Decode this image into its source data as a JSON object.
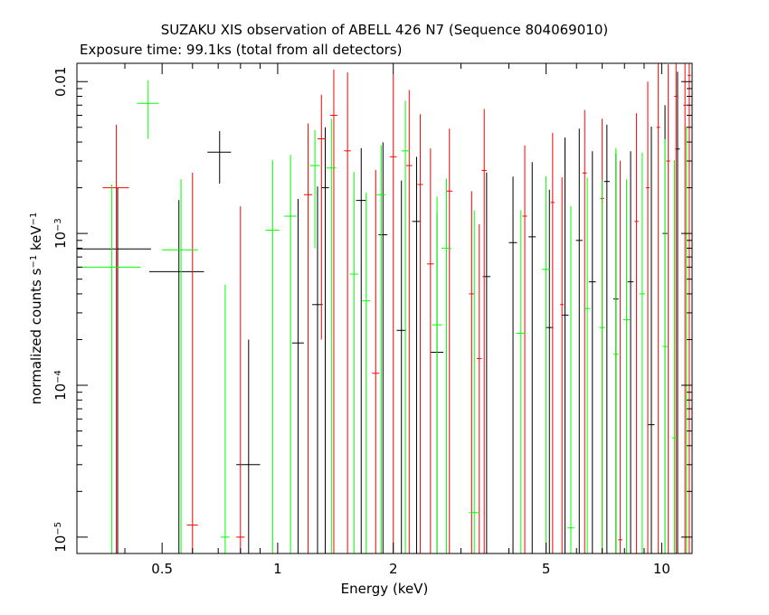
{
  "chart_data": {
    "type": "errorbar",
    "title": "SUZAKU XIS observation of ABELL 426 N7 (Sequence 804069010)",
    "subtitle": "Exposure time: 99.1ks (total from all detectors)",
    "xlabel": "Energy (keV)",
    "ylabel": [
      "normalized counts s",
      "−1",
      " keV",
      "−1"
    ],
    "xlog": true,
    "ylog": true,
    "xlim": [
      0.3,
      12
    ],
    "ylim": [
      7.8e-06,
      0.0132
    ],
    "xticks": [
      0.5,
      1,
      2,
      5,
      10
    ],
    "xminorticks": [
      0.4,
      0.6,
      0.7,
      0.8,
      0.9,
      3,
      4,
      6,
      7,
      8,
      9
    ],
    "yticks": [
      {
        "value": 1e-05,
        "label": "10",
        "exponent": "−5"
      },
      {
        "value": 0.0001,
        "label": "10",
        "exponent": "−4"
      },
      {
        "value": 0.001,
        "label": "10",
        "exponent": "−3"
      },
      0.01
    ],
    "yminorticks": [
      2e-05,
      3e-05,
      4e-05,
      5e-05,
      6e-05,
      7e-05,
      8e-05,
      9e-05,
      0.0002,
      0.0003,
      0.0004,
      0.0005,
      0.0006,
      0.0007,
      0.0008,
      0.0009,
      0.002,
      0.003,
      0.004,
      0.005,
      0.006,
      0.007,
      0.008,
      0.009
    ],
    "series": [
      {
        "color": "#000000",
        "x": [
          0.383,
          0.553,
          0.706,
          0.84,
          1.13,
          1.27,
          1.33,
          1.65,
          1.88,
          2.1,
          2.3,
          2.6,
          3.5,
          4.1,
          4.6,
          5.1,
          5.6,
          6.1,
          6.6,
          7.2,
          7.6,
          8.3,
          9.4,
          10.2,
          11
        ],
        "xerr": [
          0.085,
          0.09,
          0.05,
          0.06,
          0.04,
          0.04,
          0.03,
          0.05,
          0.05,
          0.06,
          0.06,
          0.1,
          0.08,
          0.1,
          0.1,
          0.12,
          0.12,
          0.12,
          0.14,
          0.12,
          0.12,
          0.15,
          0.18,
          0.15,
          0.15
        ],
        "values": [
          0.00079,
          0.00056,
          0.00343,
          3e-05,
          0.00019,
          0.00034,
          0.002,
          0.00165,
          0.00098,
          0.00023,
          0.0012,
          0.000165,
          0.00052,
          0.00087,
          0.00095,
          0.00024,
          0.00029,
          0.0009,
          0.00048,
          0.0022,
          0.00037,
          0.00048,
          5.5e-05,
          0.001,
          0.0036
        ],
        "yerr": [
          0.0012,
          0.0011,
          0.0013,
          0.00017,
          0.0015,
          0.0017,
          0.003,
          0.002,
          0.003,
          0.002,
          0.002,
          0.0012,
          0.002,
          0.0015,
          0.002,
          0.0017,
          0.004,
          0.004,
          0.003,
          0.003,
          0.003,
          0.003,
          0.005,
          0.006,
          0.008
        ]
      },
      {
        "color": "#ff0000",
        "x": [
          0.38,
          0.6,
          0.8,
          1.2,
          1.3,
          1.4,
          1.52,
          1.8,
          2.0,
          2.2,
          2.35,
          2.5,
          2.8,
          3.2,
          3.35,
          3.45,
          4.4,
          5.2,
          5.5,
          6.3,
          7.0,
          7.8,
          8.6,
          9.2,
          9.8,
          10.4,
          10.9,
          11.5,
          11.8
        ],
        "xerr": [
          0.03,
          0.02,
          0.02,
          0.03,
          0.03,
          0.03,
          0.03,
          0.04,
          0.04,
          0.04,
          0.04,
          0.05,
          0.05,
          0.05,
          0.05,
          0.05,
          0.06,
          0.06,
          0.06,
          0.08,
          0.08,
          0.1,
          0.1,
          0.1,
          0.1,
          0.12,
          0.12,
          0.12,
          0.12
        ],
        "values": [
          0.002,
          1.2e-05,
          1e-05,
          0.0018,
          0.0042,
          0.006,
          0.0035,
          0.00012,
          0.0032,
          0.0028,
          0.0021,
          0.00063,
          0.0019,
          0.0004,
          0.00015,
          0.0026,
          0.0013,
          0.0016,
          0.00034,
          0.0025,
          0.0017,
          9.6e-06,
          0.0012,
          0.002,
          0.005,
          0.003,
          0.008,
          0.007,
          0.011
        ],
        "yerr": [
          0.0032,
          0.0025,
          0.0015,
          0.0035,
          0.004,
          0.006,
          0.008,
          0.0025,
          0.008,
          0.006,
          0.004,
          0.003,
          0.003,
          0.0015,
          0.001,
          0.004,
          0.0025,
          0.003,
          0.002,
          0.004,
          0.004,
          0.003,
          0.005,
          0.008,
          0.012,
          0.01,
          0.015,
          0.015,
          0.02
        ]
      },
      {
        "color": "#00ff00",
        "x": [
          0.37,
          0.46,
          0.56,
          0.73,
          0.97,
          1.08,
          1.25,
          1.38,
          1.58,
          1.7,
          1.86,
          2.15,
          2.6,
          2.75,
          3.25,
          4.3,
          5.0,
          5.8,
          6.4,
          7.0,
          7.6,
          8.1,
          8.9,
          10.2,
          10.8,
          11.6
        ],
        "xerr": [
          0.07,
          0.03,
          0.06,
          0.02,
          0.04,
          0.04,
          0.04,
          0.04,
          0.04,
          0.04,
          0.05,
          0.05,
          0.08,
          0.08,
          0.1,
          0.12,
          0.12,
          0.12,
          0.12,
          0.12,
          0.12,
          0.15,
          0.15,
          0.15,
          0.15,
          0.15
        ],
        "values": [
          0.0006,
          0.0072,
          0.00078,
          1e-05,
          0.00105,
          0.0013,
          0.0028,
          0.0027,
          0.00054,
          0.00036,
          0.0018,
          0.0035,
          0.00025,
          0.0008,
          1.45e-05,
          0.00022,
          0.00058,
          1.15e-05,
          0.00032,
          0.00024,
          0.00016,
          0.00027,
          0.0004,
          0.00018,
          4.5e-05,
          8e-05
        ],
        "yerr": [
          0.0015,
          0.003,
          0.0015,
          0.00045,
          0.002,
          0.002,
          0.002,
          0.003,
          0.002,
          0.0015,
          0.002,
          0.004,
          0.0015,
          0.0015,
          0.0014,
          0.0012,
          0.0018,
          0.0015,
          0.002,
          0.002,
          0.0035,
          0.002,
          0.003,
          0.004,
          0.003,
          0.005
        ]
      }
    ]
  }
}
